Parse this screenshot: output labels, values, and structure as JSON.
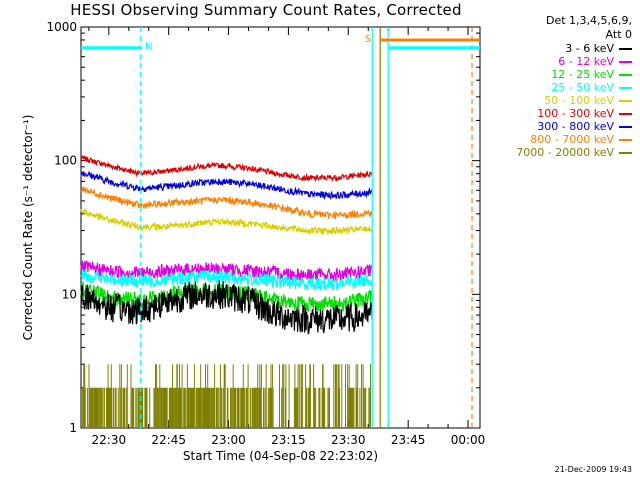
{
  "title": "HESSI Observing Summary Count Rates, Corrected",
  "timestamp": "21-Dec-2009 19:43",
  "legend": {
    "header_lines": [
      "Det 1,3,4,5,6,9,",
      "Att 0"
    ],
    "items": [
      {
        "label": "3 - 6 keV",
        "color": "#000000"
      },
      {
        "label": "6 - 12 keV",
        "color": "#e000e0"
      },
      {
        "label": "12 - 25 keV",
        "color": "#00e000"
      },
      {
        "label": "25 - 50 keV",
        "color": "#00ffff"
      },
      {
        "label": "50 - 100 keV",
        "color": "#d8d000"
      },
      {
        "label": "100 - 300 keV",
        "color": "#e00000"
      },
      {
        "label": "300 - 800 keV",
        "color": "#0000e0"
      },
      {
        "label": "800 - 7000 keV",
        "color": "#ff8000"
      },
      {
        "label": "7000 - 20000 keV",
        "color": "#808000"
      }
    ]
  },
  "chart_data": {
    "type": "line",
    "xlabel": "Start Time (04-Sep-08 22:23:02)",
    "ylabel": "Corrected Count Rate (s⁻¹ detector⁻¹)",
    "y_scale": "log",
    "ylim": [
      1,
      1000
    ],
    "xlim": [
      "22:23:02",
      "00:03:00"
    ],
    "x_ticks": [
      "22:30",
      "22:45",
      "23:00",
      "23:15",
      "23:30",
      "23:45",
      "00:00"
    ],
    "y_ticks": [
      "1",
      "10",
      "100",
      "1000"
    ],
    "grid": false,
    "legend_position": "right",
    "flags": [
      {
        "label": "N",
        "color": "#00ffff",
        "from": "22:23:02",
        "to": "22:38:00",
        "level": 700
      },
      {
        "label": "S",
        "color": "#ff8000",
        "from": "23:38:00",
        "to": "00:03:00",
        "level": 800
      },
      {
        "label": "",
        "color": "#00ffff",
        "from": "23:40:00",
        "to": "00:03:00",
        "level": 700
      }
    ],
    "vlines": [
      {
        "time": "22:38:00",
        "color": "#00ffff",
        "style": "dashed"
      },
      {
        "time": "23:36:00",
        "color": "#00ffff",
        "style": "solid"
      },
      {
        "time": "23:38:00",
        "color": "#808000",
        "style": "solid"
      },
      {
        "time": "23:40:00",
        "color": "#00ffff",
        "style": "solid"
      },
      {
        "time": "00:01:00",
        "color": "#ff8000",
        "style": "dashed"
      }
    ],
    "series": [
      {
        "name": "100 - 300 keV",
        "color": "#e00000",
        "x": [
          "22:23:02",
          "22:30",
          "22:38",
          "22:45",
          "22:52",
          "22:58",
          "23:05",
          "23:12",
          "23:20",
          "23:28",
          "23:36"
        ],
        "y": [
          105,
          92,
          80,
          84,
          90,
          92,
          88,
          80,
          74,
          75,
          80
        ]
      },
      {
        "name": "300 - 800 keV",
        "color": "#0000e0",
        "x": [
          "22:23:02",
          "22:30",
          "22:38",
          "22:45",
          "22:52",
          "22:58",
          "23:05",
          "23:12",
          "23:20",
          "23:28",
          "23:36"
        ],
        "y": [
          82,
          70,
          62,
          64,
          68,
          70,
          67,
          62,
          56,
          55,
          58
        ]
      },
      {
        "name": "800 - 7000 keV",
        "color": "#ff8000",
        "x": [
          "22:23:02",
          "22:30",
          "22:38",
          "22:45",
          "22:52",
          "22:58",
          "23:05",
          "23:12",
          "23:20",
          "23:28",
          "23:36"
        ],
        "y": [
          62,
          53,
          46,
          48,
          50,
          51,
          49,
          45,
          40,
          39,
          41
        ]
      },
      {
        "name": "50 - 100 keV",
        "color": "#d8d000",
        "x": [
          "22:23:02",
          "22:30",
          "22:38",
          "22:45",
          "22:52",
          "22:58",
          "23:05",
          "23:12",
          "23:20",
          "23:28",
          "23:36"
        ],
        "y": [
          42,
          36,
          32,
          32,
          34,
          35,
          34,
          32,
          30,
          30,
          31
        ]
      },
      {
        "name": "6 - 12 keV",
        "color": "#e000e0",
        "x": [
          "22:23:02",
          "22:30",
          "22:38",
          "22:45",
          "22:52",
          "22:58",
          "23:05",
          "23:12",
          "23:20",
          "23:28",
          "23:36"
        ],
        "y": [
          16,
          15,
          14.5,
          15,
          15.5,
          15.5,
          15,
          14.5,
          14,
          14,
          15
        ]
      },
      {
        "name": "25 - 50 keV",
        "color": "#00ffff",
        "x": [
          "22:23:02",
          "22:30",
          "22:38",
          "22:45",
          "22:52",
          "22:58",
          "23:05",
          "23:12",
          "23:20",
          "23:28",
          "23:36"
        ],
        "y": [
          14,
          13,
          12.5,
          13,
          13.5,
          13.5,
          13,
          12.5,
          12,
          12,
          13
        ]
      },
      {
        "name": "12 - 25 keV",
        "color": "#00e000",
        "x": [
          "22:23:02",
          "22:30",
          "22:38",
          "22:45",
          "22:52",
          "22:58",
          "23:05",
          "23:12",
          "23:20",
          "23:28",
          "23:36"
        ],
        "y": [
          11,
          9.5,
          9,
          10,
          10.5,
          10.5,
          10,
          9,
          8.5,
          8.5,
          9.5
        ]
      },
      {
        "name": "3 - 6 keV",
        "color": "#000000",
        "x": [
          "22:23:02",
          "22:30",
          "22:38",
          "22:45",
          "22:52",
          "22:58",
          "23:05",
          "23:12",
          "23:20",
          "23:28",
          "23:36"
        ],
        "y": [
          10,
          8,
          7.5,
          9,
          10,
          10,
          9,
          7,
          6.5,
          6.5,
          7
        ]
      },
      {
        "name": "7000 - 20000 keV",
        "color": "#808000",
        "x": [
          "22:23:02",
          "22:30",
          "22:38",
          "22:45",
          "22:52",
          "22:58",
          "23:05",
          "23:12",
          "23:20",
          "23:28",
          "23:36"
        ],
        "y": [
          1.6,
          1.5,
          1.1,
          1.5,
          1.6,
          1.8,
          1.6,
          1.2,
          1.3,
          1.1,
          1.3
        ]
      }
    ]
  }
}
